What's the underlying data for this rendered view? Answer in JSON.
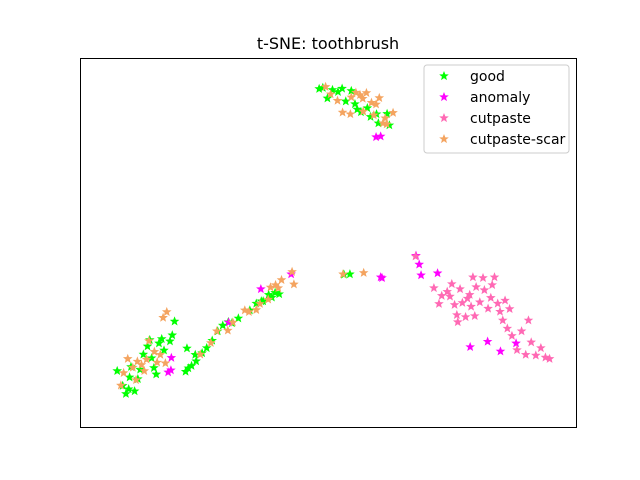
{
  "chart_data": {
    "type": "scatter",
    "title": "t-SNE: toothbrush",
    "xlabel": "",
    "ylabel": "",
    "xlim": [
      0,
      100
    ],
    "ylim": [
      0,
      100
    ],
    "axis_ticks": false,
    "grid": false,
    "legend": "top-right",
    "marker": "star",
    "series": [
      {
        "name": "good",
        "color": "#00ff00",
        "points": [
          [
            48.4,
            95.3
          ],
          [
            49.2,
            95.6
          ],
          [
            50.2,
            92.5
          ],
          [
            51.3,
            95.0
          ],
          [
            52.5,
            94.4
          ],
          [
            53.4,
            95.4
          ],
          [
            54.2,
            91.6
          ],
          [
            55.4,
            94.7
          ],
          [
            56.2,
            90.8
          ],
          [
            56.7,
            89.2
          ],
          [
            57.5,
            88.4
          ],
          [
            58.9,
            89.6
          ],
          [
            59.6,
            87.0
          ],
          [
            60.9,
            87.8
          ],
          [
            61.3,
            85.1
          ],
          [
            63.2,
            87.9
          ],
          [
            63.7,
            84.5
          ],
          [
            53.8,
            40.2
          ],
          [
            55.1,
            40.3
          ],
          [
            4.4,
            11.6
          ],
          [
            5.6,
            7.2
          ],
          [
            6.3,
            4.8
          ],
          [
            6.9,
            6.2
          ],
          [
            7.1,
            9.7
          ],
          [
            7.4,
            12.8
          ],
          [
            8.2,
            5.6
          ],
          [
            8.9,
            9.2
          ],
          [
            9.4,
            12.0
          ],
          [
            10.1,
            16.5
          ],
          [
            11.0,
            18.9
          ],
          [
            11.5,
            20.8
          ],
          [
            11.9,
            15.4
          ],
          [
            12.4,
            12.5
          ],
          [
            12.9,
            10.6
          ],
          [
            13.5,
            19.8
          ],
          [
            14.1,
            21.1
          ],
          [
            14.6,
            17.7
          ],
          [
            15.9,
            20.4
          ],
          [
            16.4,
            22.2
          ],
          [
            16.9,
            26.3
          ],
          [
            19.6,
            18.3
          ],
          [
            21.4,
            16.4
          ],
          [
            19.3,
            11.4
          ],
          [
            19.9,
            12.4
          ],
          [
            20.6,
            13.1
          ],
          [
            21.6,
            14.5
          ],
          [
            22.9,
            16.9
          ],
          [
            23.9,
            18.4
          ],
          [
            25.1,
            20.6
          ],
          [
            26.3,
            23.4
          ],
          [
            27.4,
            25.1
          ],
          [
            28.6,
            26.1
          ],
          [
            29.4,
            25.8
          ],
          [
            30.8,
            27.2
          ],
          [
            33.3,
            29.6
          ],
          [
            34.7,
            31.6
          ],
          [
            35.8,
            32.3
          ],
          [
            36.2,
            32.3
          ],
          [
            37.4,
            34.2
          ],
          [
            38.1,
            33.4
          ],
          [
            38.8,
            34.8
          ],
          [
            39.7,
            34.4
          ]
        ]
      },
      {
        "name": "anomaly",
        "color": "#ff00ff",
        "points": [
          [
            60.8,
            81.0
          ],
          [
            61.8,
            81.2
          ],
          [
            61.8,
            39.4
          ],
          [
            62.1,
            39.2
          ],
          [
            69.5,
            45.8
          ],
          [
            70.2,
            43.2
          ],
          [
            70.6,
            40.0
          ],
          [
            74.2,
            40.6
          ],
          [
            81.3,
            18.7
          ],
          [
            85.1,
            20.3
          ],
          [
            87.9,
            17.4
          ],
          [
            91.3,
            19.8
          ],
          [
            15.5,
            11.2
          ],
          [
            16.1,
            11.8
          ],
          [
            16.2,
            15.5
          ],
          [
            28.7,
            26.0
          ],
          [
            35.7,
            35.9
          ],
          [
            42.3,
            40.3
          ]
        ]
      },
      {
        "name": "cutpaste",
        "color": "#ff69b4",
        "points": [
          [
            69.4,
            45.6
          ],
          [
            73.4,
            36.2
          ],
          [
            74.5,
            31.5
          ],
          [
            75.1,
            33.9
          ],
          [
            76.3,
            35.1
          ],
          [
            76.9,
            33.7
          ],
          [
            77.3,
            37.4
          ],
          [
            77.9,
            31.2
          ],
          [
            78.4,
            28.2
          ],
          [
            78.6,
            26.1
          ],
          [
            79.1,
            35.9
          ],
          [
            79.6,
            31.8
          ],
          [
            80.3,
            27.6
          ],
          [
            80.7,
            33.1
          ],
          [
            81.2,
            34.2
          ],
          [
            81.5,
            30.7
          ],
          [
            81.9,
            39.4
          ],
          [
            82.3,
            27.9
          ],
          [
            82.6,
            36.5
          ],
          [
            83.4,
            32.0
          ],
          [
            84.1,
            39.2
          ],
          [
            84.4,
            35.6
          ],
          [
            85.2,
            30.1
          ],
          [
            85.8,
            33.3
          ],
          [
            86.1,
            37.1
          ],
          [
            86.6,
            39.4
          ],
          [
            87.3,
            31.6
          ],
          [
            87.8,
            29.2
          ],
          [
            88.4,
            26.6
          ],
          [
            88.9,
            32.5
          ],
          [
            89.4,
            24.2
          ],
          [
            89.9,
            30.0
          ],
          [
            90.4,
            22.0
          ],
          [
            91.5,
            17.8
          ],
          [
            92.5,
            23.4
          ],
          [
            93.4,
            16.4
          ],
          [
            94.6,
            20.1
          ],
          [
            95.6,
            16.2
          ],
          [
            96.7,
            18.4
          ],
          [
            97.7,
            15.6
          ],
          [
            98.6,
            15.2
          ],
          [
            94.0,
            26.6
          ]
        ]
      },
      {
        "name": "cutpaste-scar",
        "color": "#f4a460",
        "points": [
          [
            49.8,
            95.9
          ],
          [
            50.9,
            93.7
          ],
          [
            52.4,
            91.8
          ],
          [
            55.4,
            92.8
          ],
          [
            56.4,
            94.2
          ],
          [
            57.3,
            93.5
          ],
          [
            57.9,
            92.4
          ],
          [
            58.7,
            94.1
          ],
          [
            59.8,
            91.2
          ],
          [
            60.8,
            90.7
          ],
          [
            61.5,
            92.6
          ],
          [
            62.3,
            85.1
          ],
          [
            62.8,
            86.6
          ],
          [
            53.5,
            88.3
          ],
          [
            55.2,
            87.8
          ],
          [
            63.1,
            84.8
          ],
          [
            64.5,
            88.2
          ],
          [
            60.3,
            87.5
          ],
          [
            58.0,
            88.6
          ],
          [
            53.6,
            40.3
          ],
          [
            58.1,
            40.7
          ],
          [
            42.5,
            41.0
          ],
          [
            42.9,
            37.3
          ],
          [
            38.9,
            37.1
          ],
          [
            40.2,
            38.6
          ],
          [
            39.5,
            36.2
          ],
          [
            37.8,
            36.4
          ],
          [
            37.3,
            32.8
          ],
          [
            35.5,
            31.5
          ],
          [
            34.7,
            29.7
          ],
          [
            33.1,
            29.1
          ],
          [
            32.2,
            29.6
          ],
          [
            29.6,
            26.0
          ],
          [
            28.5,
            23.6
          ],
          [
            26.1,
            23.4
          ],
          [
            24.8,
            19.9
          ],
          [
            22.5,
            16.5
          ],
          [
            14.4,
            27.4
          ],
          [
            15.2,
            29.1
          ],
          [
            5.2,
            7.3
          ],
          [
            5.8,
            11.0
          ],
          [
            6.7,
            15.2
          ],
          [
            7.8,
            12.6
          ],
          [
            8.8,
            14.4
          ],
          [
            9.7,
            13.4
          ],
          [
            10.3,
            11.6
          ],
          [
            10.8,
            15.0
          ],
          [
            11.3,
            20.5
          ],
          [
            12.5,
            17.3
          ],
          [
            13.1,
            14.1
          ],
          [
            13.8,
            16.4
          ],
          [
            14.9,
            13.9
          ],
          [
            8.5,
            8.9
          ]
        ]
      }
    ]
  }
}
